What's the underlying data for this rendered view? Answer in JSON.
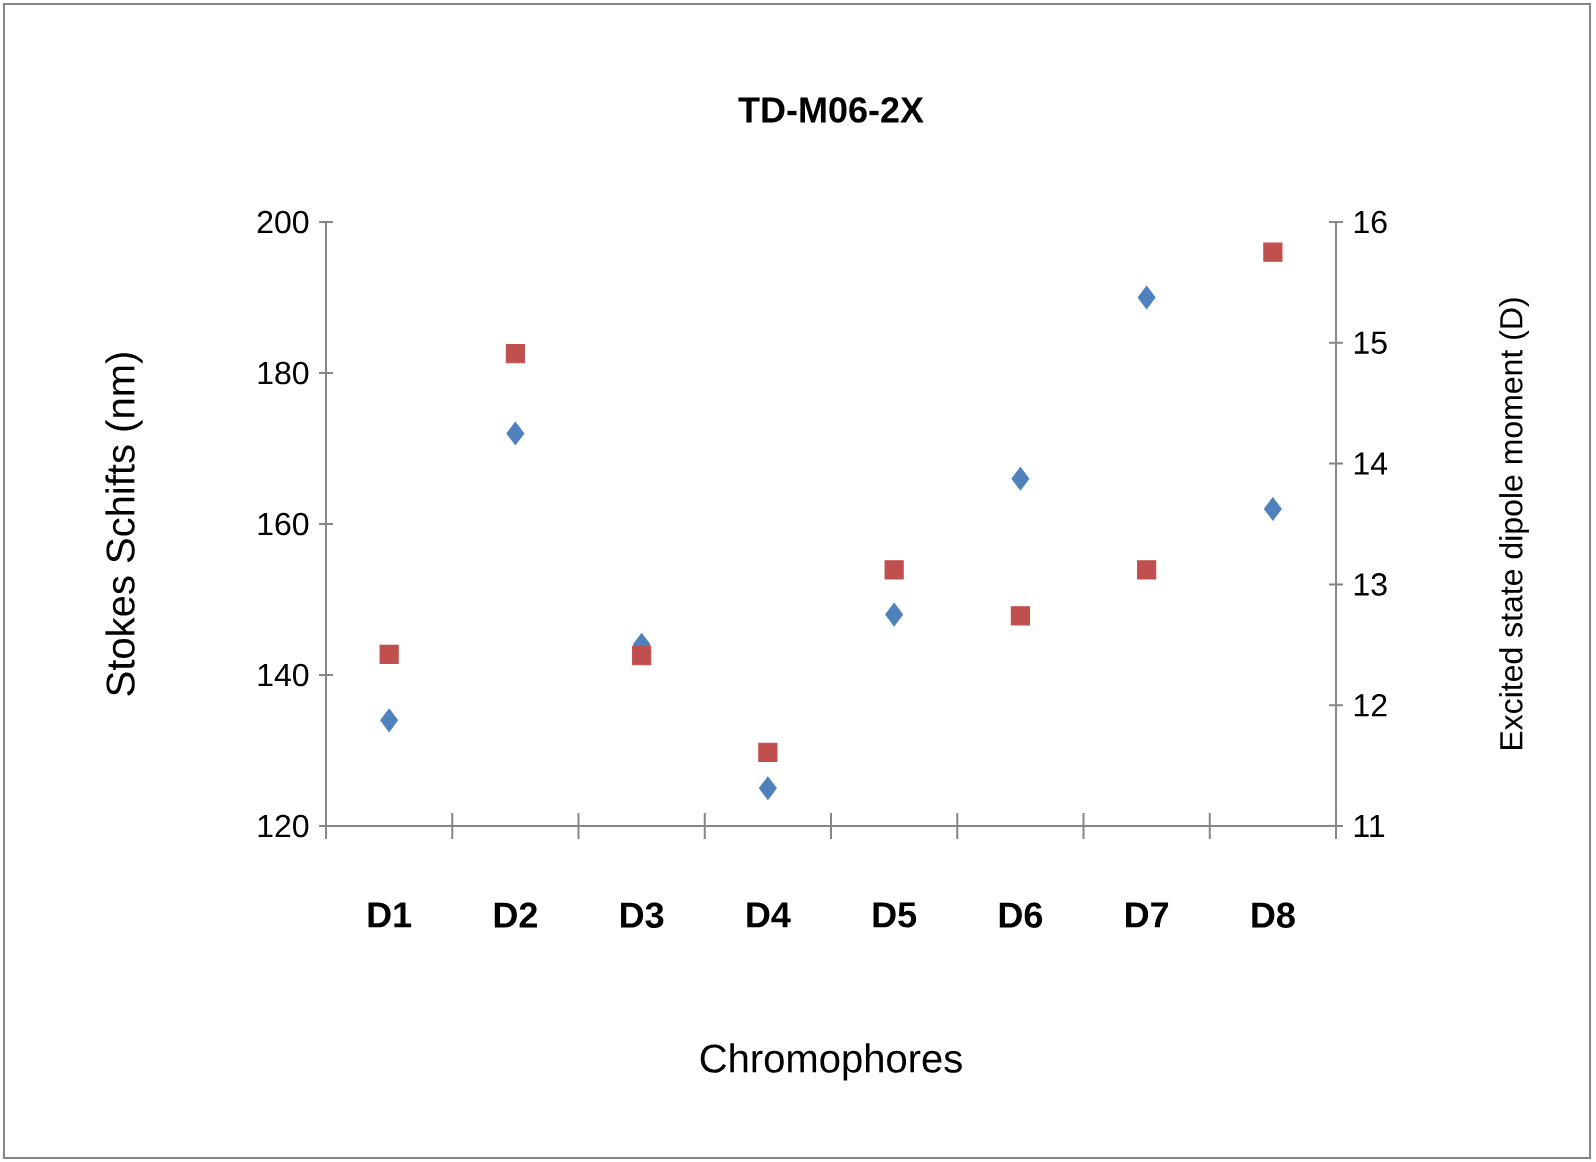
{
  "chart_data": {
    "type": "scatter",
    "title": "TD-M06-2X",
    "xlabel": "Chromophores",
    "ylabel": "Stokes Schifts  (nm)",
    "y2label": "Excited state dipole moment (D)",
    "categories": [
      "D1",
      "D2",
      "D3",
      "D4",
      "D5",
      "D6",
      "D7",
      "D8"
    ],
    "series": [
      {
        "color": "#4f81bd",
        "marker": "diamond",
        "values": [
          134,
          172,
          144,
          125,
          148,
          166,
          190,
          162
        ]
      },
      {
        "color": "#c0504d",
        "marker": "square",
        "axis": "y2",
        "values": [
          12.42,
          14.91,
          12.41,
          11.61,
          13.12,
          12.74,
          13.12,
          15.75
        ]
      }
    ],
    "ylim": [
      120,
      200
    ],
    "yticks": [
      120,
      140,
      160,
      180,
      200
    ],
    "y2lim": [
      11,
      16
    ],
    "y2ticks": [
      11,
      12,
      13,
      14,
      15,
      16
    ]
  }
}
